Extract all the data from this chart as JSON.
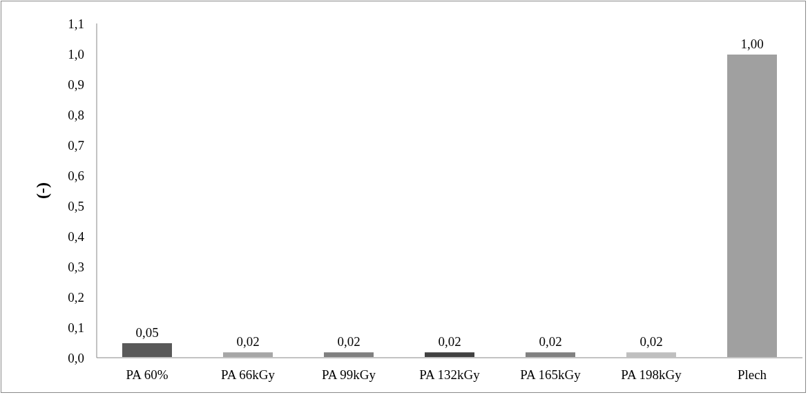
{
  "chart_data": {
    "type": "bar",
    "ylabel": "(-)",
    "categories": [
      "PA 60%",
      "PA 66kGy",
      "PA 99kGy",
      "PA 132kGy",
      "PA 165kGy",
      "PA 198kGy",
      "Plech"
    ],
    "values": [
      0.05,
      0.02,
      0.02,
      0.02,
      0.02,
      0.02,
      1.0
    ],
    "colors": [
      "#595959",
      "#a6a6a6",
      "#7f7f7f",
      "#404040",
      "#808080",
      "#bfbfbf",
      "#a0a0a0"
    ],
    "value_labels": [
      "0,05",
      "0,02",
      "0,02",
      "0,02",
      "0,02",
      "0,02",
      "1,00"
    ],
    "ylim": [
      0,
      1.1
    ],
    "yticks": [
      {
        "value": 0,
        "label": "0,0"
      },
      {
        "value": 0.1,
        "label": "0,1"
      },
      {
        "value": 0.2,
        "label": "0,2"
      },
      {
        "value": 0.3,
        "label": "0,3"
      },
      {
        "value": 0.4,
        "label": "0,4"
      },
      {
        "value": 0.5,
        "label": "0,5"
      },
      {
        "value": 0.6,
        "label": "0,6"
      },
      {
        "value": 0.7,
        "label": "0,7"
      },
      {
        "value": 0.8,
        "label": "0,8"
      },
      {
        "value": 0.9,
        "label": "0,9"
      },
      {
        "value": 1.0,
        "label": "1,0"
      },
      {
        "value": 1.1,
        "label": "1,1"
      }
    ],
    "grid": false,
    "legend": false
  }
}
